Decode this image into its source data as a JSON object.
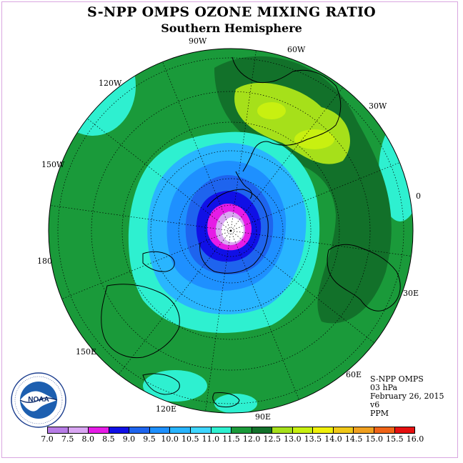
{
  "title": "S-NPP OMPS OZONE MIXING RATIO",
  "subtitle": "Southern Hemisphere",
  "map": {
    "projection": "south polar stereographic",
    "longitude_labels": {
      "lon_90w": "90W",
      "lon_60w": "60W",
      "lon_30w": "30W",
      "lon_0": "0",
      "lon_30e": "30E",
      "lon_60e": "60E",
      "lon_90e": "90E",
      "lon_120e": "120E",
      "lon_150e": "150E",
      "lon_180": "180",
      "lon_150w": "150W",
      "lon_120w": "120W"
    },
    "grid": "dotted parallels and meridians"
  },
  "info": {
    "instrument": "S-NPP OMPS",
    "level": "03 hPa",
    "date": "February 26, 2015",
    "version": "v6",
    "units": "PPM"
  },
  "logo": {
    "text": "NOAA",
    "ring_text": "NATIONAL OCEANIC AND ATMOSPHERIC ADMINISTRATION · U.S. DEPARTMENT OF COMMERCE"
  },
  "colorbar": {
    "ticks": [
      "7.0",
      "7.5",
      "8.0",
      "8.5",
      "9.0",
      "9.5",
      "10.0",
      "10.5",
      "11.0",
      "11.5",
      "12.0",
      "12.5",
      "13.0",
      "13.5",
      "14.0",
      "14.5",
      "15.0",
      "15.5",
      "16.0"
    ],
    "colors": [
      "#b77ce6",
      "#d9a6f2",
      "#e61ce6",
      "#1010e6",
      "#1e64ee",
      "#1e90ff",
      "#29b5ff",
      "#3fd6ff",
      "#2ef0d0",
      "#1a9a3a",
      "#12712a",
      "#a6e01a",
      "#c8f010",
      "#f0f00a",
      "#f0c818",
      "#f0a020",
      "#f06418",
      "#e61010",
      "#805030"
    ]
  }
}
